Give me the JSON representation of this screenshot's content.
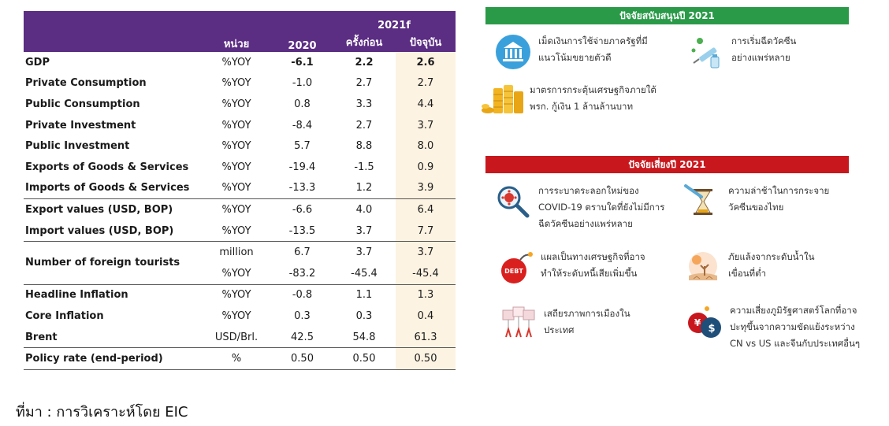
{
  "table": {
    "headers": {
      "unit": "หน่วย",
      "y2020": "2020",
      "forecast": "2021f",
      "previous": "ครั้งก่อน",
      "current": "ปัจจุบัน"
    },
    "rows": [
      {
        "label": "GDP",
        "unit": "%YOY",
        "y2020": "-6.1",
        "prev": "2.2",
        "curr": "2.6"
      },
      {
        "label": "Private Consumption",
        "unit": "%YOY",
        "y2020": "-1.0",
        "prev": "2.7",
        "curr": "2.7"
      },
      {
        "label": "Public Consumption",
        "unit": "%YOY",
        "y2020": "0.8",
        "prev": "3.3",
        "curr": "4.4"
      },
      {
        "label": "Private Investment",
        "unit": "%YOY",
        "y2020": "-8.4",
        "prev": "2.7",
        "curr": "3.7"
      },
      {
        "label": "Public Investment",
        "unit": "%YOY",
        "y2020": "5.7",
        "prev": "8.8",
        "curr": "8.0"
      },
      {
        "label": "Exports of Goods & Services",
        "unit": "%YOY",
        "y2020": "-19.4",
        "prev": "-1.5",
        "curr": "0.9"
      },
      {
        "label": "Imports of Goods & Services",
        "unit": "%YOY",
        "y2020": "-13.3",
        "prev": "1.2",
        "curr": "3.9"
      },
      {
        "label": "Export values (USD, BOP)",
        "unit": "%YOY",
        "y2020": "-6.6",
        "prev": "4.0",
        "curr": "6.4"
      },
      {
        "label": "Import values (USD, BOP)",
        "unit": "%YOY",
        "y2020": "-13.5",
        "prev": "3.7",
        "curr": "7.7"
      },
      {
        "label": "Number of foreign tourists",
        "unit": "million",
        "y2020": "6.7",
        "prev": "3.7",
        "curr": "3.7"
      },
      {
        "label": "",
        "unit": "%YOY",
        "y2020": "-83.2",
        "prev": "-45.4",
        "curr": "-45.4"
      },
      {
        "label": "Headline Inflation",
        "unit": "%YOY",
        "y2020": "-0.8",
        "prev": "1.1",
        "curr": "1.3"
      },
      {
        "label": "Core Inflation",
        "unit": "%YOY",
        "y2020": "0.3",
        "prev": "0.3",
        "curr": "0.4"
      },
      {
        "label": "Brent",
        "unit": "USD/Brl.",
        "y2020": "42.5",
        "prev": "54.8",
        "curr": "61.3"
      },
      {
        "label": "Policy rate (end-period)",
        "unit": "%",
        "y2020": "0.50",
        "prev": "0.50",
        "curr": "0.50"
      }
    ]
  },
  "support": {
    "title": "ปัจจัยสนับสนุนปี 2021",
    "items": [
      {
        "icon": "government-building-icon",
        "line1": "เม็ดเงินการใช้จ่ายภาครัฐที่มี",
        "line2": "แนวโน้มขยายตัวดี"
      },
      {
        "icon": "vaccine-syringe-icon",
        "line1": "การเริ่มฉีดวัคซีน",
        "line2": "อย่างแพร่หลาย"
      },
      {
        "icon": "coin-stack-icon",
        "line1": "มาตรการกระตุ้นเศรษฐกิจภายใต้",
        "line2": "พรก. กู้เงิน 1 ล้านล้านบาท"
      }
    ]
  },
  "risk": {
    "title": "ปัจจัยเสี่ยงปี 2021",
    "items": [
      {
        "icon": "virus-magnifier-icon",
        "line1": "การระบาดระลอกใหม่ของ",
        "line2": "COVID-19 ตราบใดที่ยังไม่มีการ",
        "line3": "ฉีดวัคซีนอย่างแพร่หลาย"
      },
      {
        "icon": "hourglass-syringe-icon",
        "line1": "ความล่าช้าในการกระจาย",
        "line2": "วัคซีนของไทย"
      },
      {
        "icon": "debt-bomb-icon",
        "badge": "DEBT",
        "line1": "แผลเป็นทางเศรษฐกิจที่อาจ",
        "line2": "ทำให้ระดับหนี้เสียเพิ่มขึ้น"
      },
      {
        "icon": "drought-icon",
        "line1": "ภัยแล้งจากระดับน้ำใน",
        "line2": "เขื่อนที่ต่ำ"
      },
      {
        "icon": "protest-signs-icon",
        "line1": "เสถียรภาพการเมืองใน",
        "line2": "ประเทศ"
      },
      {
        "icon": "currency-bombs-icon",
        "line1": "ความเสี่ยงภูมิรัฐศาสตร์โลกที่อาจ",
        "line2": "ปะทุขึ้นจากความขัดแย้งระหว่าง",
        "line3": "CN vs US และจีนกับประเทศอื่นๆ"
      }
    ]
  },
  "source": "ที่มา : การวิเคราะห์โดย EIC",
  "colors": {
    "header_purple": "#5b2d83",
    "support_green": "#2a9a48",
    "risk_red": "#c8181e",
    "current_col_bg": "#fdf3e2"
  }
}
